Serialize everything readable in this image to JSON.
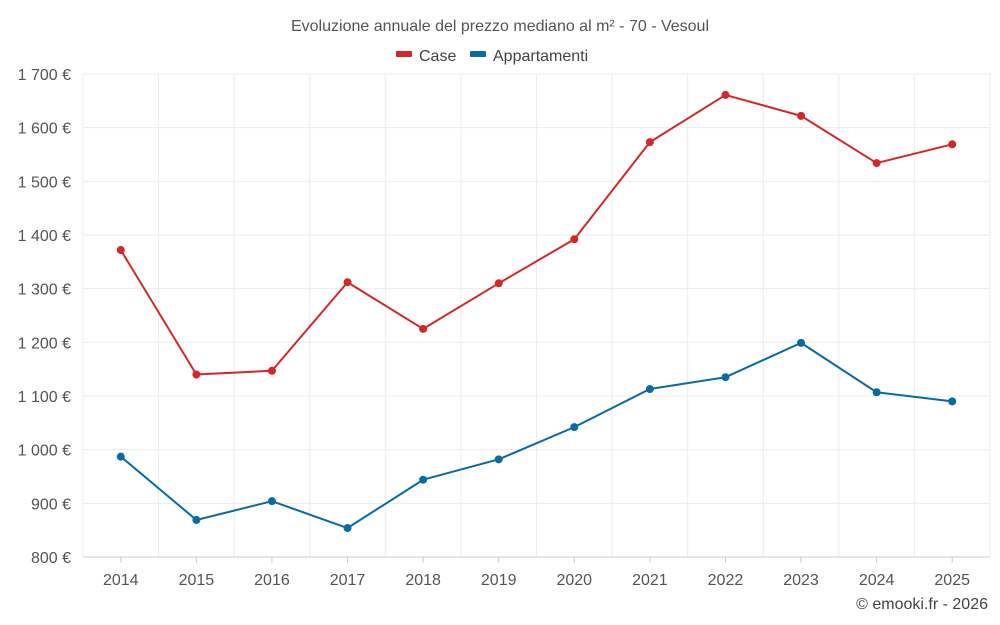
{
  "chart_data": {
    "type": "line",
    "title": "Evoluzione annuale del prezzo mediano al m² - 70 - Vesoul",
    "categories": [
      "2014",
      "2015",
      "2016",
      "2017",
      "2018",
      "2019",
      "2020",
      "2021",
      "2022",
      "2023",
      "2024",
      "2025"
    ],
    "series": [
      {
        "name": "Case",
        "color": "#d62728",
        "values": [
          1372,
          1140,
          1147,
          1312,
          1225,
          1310,
          1392,
          1573,
          1661,
          1622,
          1534,
          1569
        ]
      },
      {
        "name": "Appartamenti",
        "color": "#0b6aa1",
        "values": [
          987,
          869,
          904,
          854,
          944,
          982,
          1042,
          1113,
          1135,
          1199,
          1107,
          1090
        ]
      }
    ],
    "ylim": [
      800,
      1700
    ],
    "yticks": [
      800,
      900,
      1000,
      1100,
      1200,
      1300,
      1400,
      1500,
      1600,
      1700
    ],
    "ytick_labels": [
      "800 €",
      "900 €",
      "1 000 €",
      "1 100 €",
      "1 200 €",
      "1 300 €",
      "1 400 €",
      "1 500 €",
      "1 600 €",
      "1 700 €"
    ],
    "legend_position": "top-center",
    "grid": true,
    "xlabel": "",
    "ylabel": ""
  },
  "credit": "© emooki.fr - 2026"
}
